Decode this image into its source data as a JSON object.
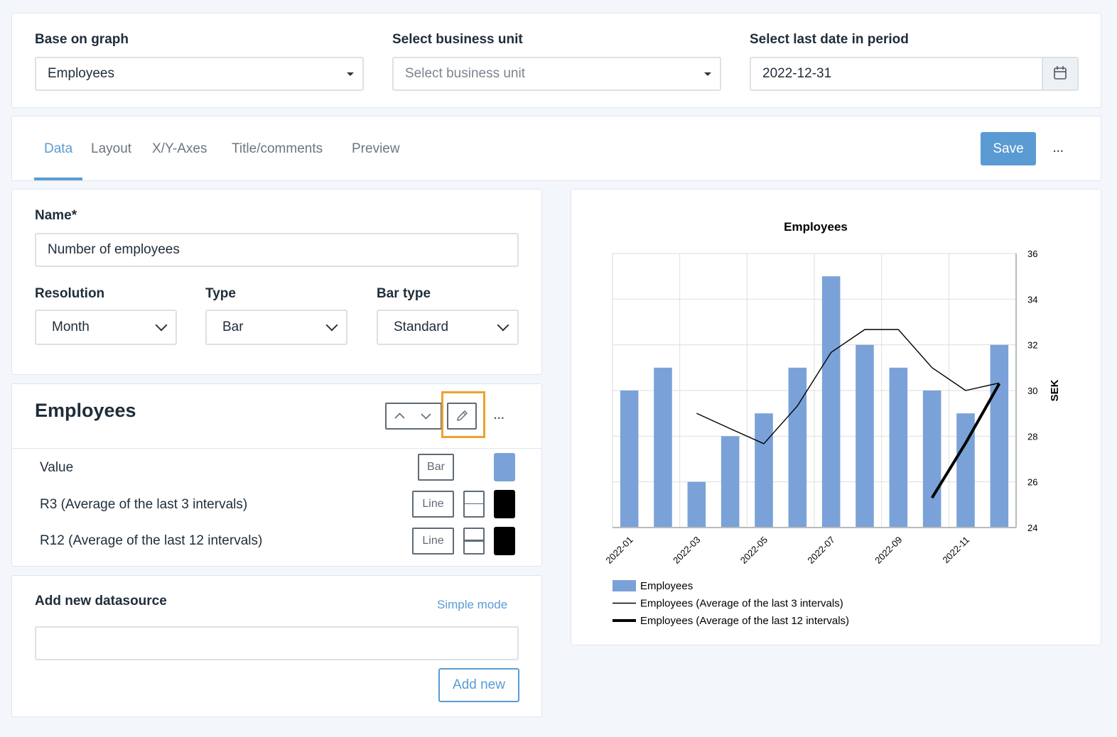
{
  "filters": {
    "base_label": "Base on graph",
    "base_value": "Employees",
    "unit_label": "Select business unit",
    "unit_placeholder": "Select business unit",
    "date_label": "Select last date in period",
    "date_value": "2022-12-31"
  },
  "tabs": [
    {
      "label": "Data",
      "active": true
    },
    {
      "label": "Layout",
      "active": false
    },
    {
      "label": "X/Y-Axes",
      "active": false
    },
    {
      "label": "Title/comments",
      "active": false
    },
    {
      "label": "Preview",
      "active": false
    }
  ],
  "toolbar": {
    "save_label": "Save",
    "more_label": "..."
  },
  "form": {
    "name_label": "Name*",
    "name_value": "Number of employees",
    "resolution_label": "Resolution",
    "resolution_value": "Month",
    "type_label": "Type",
    "type_value": "Bar",
    "bartype_label": "Bar type",
    "bartype_value": "Standard"
  },
  "series_panel": {
    "title": "Employees",
    "more_label": "...",
    "rows": [
      {
        "label": "Value",
        "type": "Bar",
        "color": "#7aa2d8"
      },
      {
        "label": "R3 (Average of the last 3 intervals)",
        "type": "Line",
        "color": "#000000"
      },
      {
        "label": "R12 (Average of the last 12 intervals)",
        "type": "Line",
        "color": "#000000"
      }
    ]
  },
  "datasource": {
    "title": "Add new datasource",
    "mode_link": "Simple mode",
    "input_value": "",
    "add_label": "Add new"
  },
  "colors": {
    "accent": "#5a9bd4",
    "bar": "#7aa2d8",
    "highlight": "#f0a030"
  },
  "chart_data": {
    "type": "bar",
    "title": "Employees",
    "ylabel": "SEK",
    "ylim": [
      24,
      36
    ],
    "yticks": [
      24,
      26,
      28,
      30,
      32,
      34,
      36
    ],
    "y_axis_side": "right",
    "grid": true,
    "categories": [
      "2022-01",
      "2022-02",
      "2022-03",
      "2022-04",
      "2022-05",
      "2022-06",
      "2022-07",
      "2022-08",
      "2022-09",
      "2022-10",
      "2022-11",
      "2022-12"
    ],
    "xtick_labels": [
      "2022-01",
      "2022-03",
      "2022-05",
      "2022-07",
      "2022-09",
      "2022-11"
    ],
    "series": [
      {
        "name": "Employees",
        "kind": "bar",
        "values": [
          30,
          31,
          26,
          28,
          29,
          31,
          35,
          32,
          31,
          30,
          29,
          32
        ]
      },
      {
        "name": "Employees (Average of the last 3 intervals)",
        "kind": "line",
        "values": [
          null,
          null,
          29,
          28.33,
          27.67,
          29.33,
          31.67,
          32.67,
          32.67,
          31,
          30,
          30.33
        ]
      },
      {
        "name": "Employees (Average of the last 12 intervals)",
        "kind": "line-thick",
        "values": [
          null,
          null,
          null,
          null,
          null,
          null,
          null,
          null,
          null,
          25.3,
          27.7,
          30.3
        ]
      }
    ],
    "legend_position": "bottom-left"
  }
}
